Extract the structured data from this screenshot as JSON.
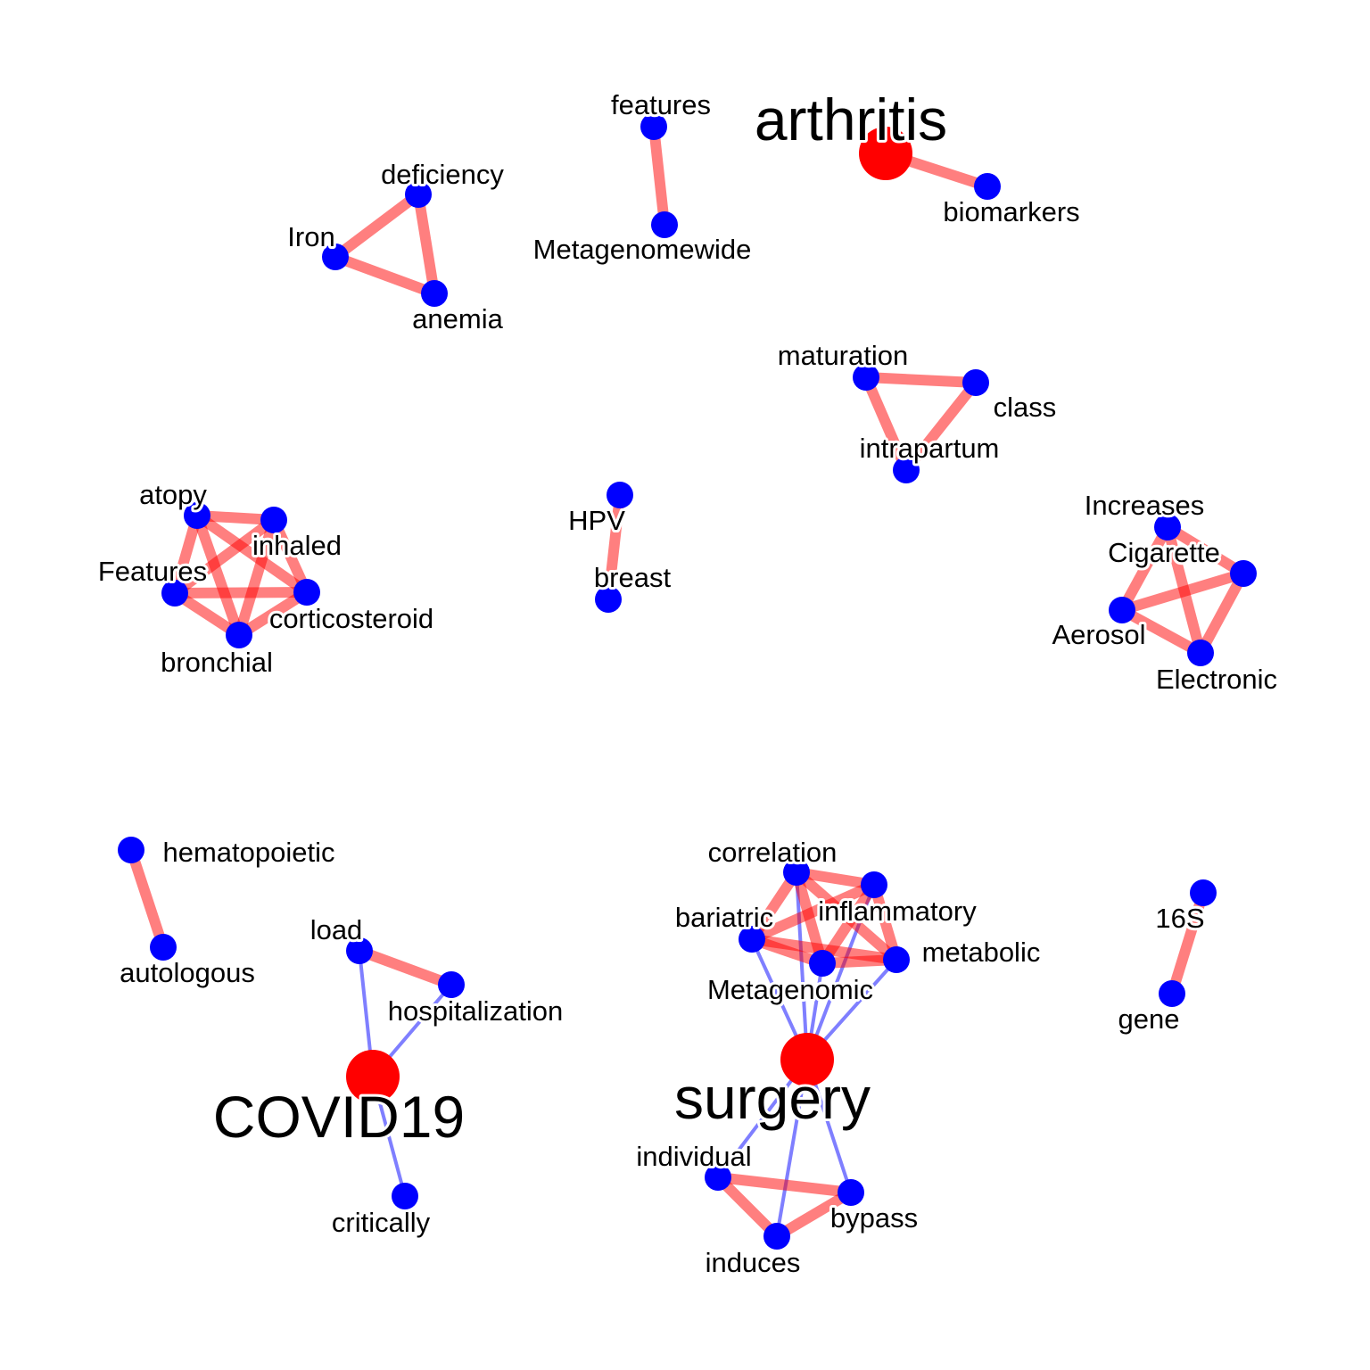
{
  "colors": {
    "background": "#ffffff",
    "term_node": "#0000ff",
    "hub_node": "#ff0000",
    "cooccurrence_edge": "#ff0000",
    "hub_edge": "#0000ff"
  },
  "network": {
    "hubs": [
      {
        "id": "arthritis",
        "label": "arthritis"
      },
      {
        "id": "COVID19",
        "label": "COVID19"
      },
      {
        "id": "surgery",
        "label": "surgery"
      }
    ],
    "terms": [
      {
        "id": "features",
        "label": "features"
      },
      {
        "id": "Metagenomewide",
        "label": "Metagenomewide"
      },
      {
        "id": "biomarkers",
        "label": "biomarkers"
      },
      {
        "id": "deficiency",
        "label": "deficiency"
      },
      {
        "id": "Iron",
        "label": "Iron"
      },
      {
        "id": "anemia",
        "label": "anemia"
      },
      {
        "id": "maturation",
        "label": "maturation"
      },
      {
        "id": "class",
        "label": "class"
      },
      {
        "id": "intrapartum",
        "label": "intrapartum"
      },
      {
        "id": "atopy",
        "label": "atopy"
      },
      {
        "id": "inhaled",
        "label": "inhaled"
      },
      {
        "id": "Features",
        "label": "Features"
      },
      {
        "id": "corticosteroid",
        "label": "corticosteroid"
      },
      {
        "id": "bronchial",
        "label": "bronchial"
      },
      {
        "id": "HPV",
        "label": "HPV"
      },
      {
        "id": "breast",
        "label": "breast"
      },
      {
        "id": "Increases",
        "label": "Increases"
      },
      {
        "id": "Cigarette",
        "label": "Cigarette"
      },
      {
        "id": "Aerosol",
        "label": "Aerosol"
      },
      {
        "id": "Electronic",
        "label": "Electronic"
      },
      {
        "id": "hematopoietic",
        "label": "hematopoietic"
      },
      {
        "id": "autologous",
        "label": "autologous"
      },
      {
        "id": "load",
        "label": "load"
      },
      {
        "id": "hospitalization",
        "label": "hospitalization"
      },
      {
        "id": "critically",
        "label": "critically"
      },
      {
        "id": "correlation",
        "label": "correlation"
      },
      {
        "id": "inflammatory",
        "label": "inflammatory"
      },
      {
        "id": "bariatric",
        "label": "bariatric"
      },
      {
        "id": "metabolic",
        "label": "metabolic"
      },
      {
        "id": "Metagenomic",
        "label": "Metagenomic"
      },
      {
        "id": "16S",
        "label": "16S"
      },
      {
        "id": "gene",
        "label": "gene"
      },
      {
        "id": "individual",
        "label": "individual"
      },
      {
        "id": "bypass",
        "label": "bypass"
      },
      {
        "id": "induces",
        "label": "induces"
      }
    ],
    "cooccurrence_edges": [
      [
        "features",
        "Metagenomewide"
      ],
      [
        "arthritis",
        "biomarkers"
      ],
      [
        "Iron",
        "deficiency"
      ],
      [
        "Iron",
        "anemia"
      ],
      [
        "deficiency",
        "anemia"
      ],
      [
        "maturation",
        "class"
      ],
      [
        "maturation",
        "intrapartum"
      ],
      [
        "class",
        "intrapartum"
      ],
      [
        "atopy",
        "inhaled"
      ],
      [
        "atopy",
        "Features"
      ],
      [
        "atopy",
        "corticosteroid"
      ],
      [
        "atopy",
        "bronchial"
      ],
      [
        "inhaled",
        "Features"
      ],
      [
        "inhaled",
        "corticosteroid"
      ],
      [
        "inhaled",
        "bronchial"
      ],
      [
        "Features",
        "corticosteroid"
      ],
      [
        "Features",
        "bronchial"
      ],
      [
        "corticosteroid",
        "bronchial"
      ],
      [
        "HPV",
        "breast"
      ],
      [
        "Increases",
        "Cigarette"
      ],
      [
        "Increases",
        "Aerosol"
      ],
      [
        "Increases",
        "Electronic"
      ],
      [
        "Cigarette",
        "Aerosol"
      ],
      [
        "Cigarette",
        "Electronic"
      ],
      [
        "Aerosol",
        "Electronic"
      ],
      [
        "hematopoietic",
        "autologous"
      ],
      [
        "load",
        "hospitalization"
      ],
      [
        "correlation",
        "inflammatory"
      ],
      [
        "correlation",
        "bariatric"
      ],
      [
        "correlation",
        "metabolic"
      ],
      [
        "correlation",
        "Metagenomic"
      ],
      [
        "inflammatory",
        "bariatric"
      ],
      [
        "inflammatory",
        "metabolic"
      ],
      [
        "inflammatory",
        "Metagenomic"
      ],
      [
        "bariatric",
        "metabolic"
      ],
      [
        "bariatric",
        "Metagenomic"
      ],
      [
        "metabolic",
        "Metagenomic"
      ],
      [
        "16S",
        "gene"
      ],
      [
        "individual",
        "bypass"
      ],
      [
        "individual",
        "induces"
      ],
      [
        "bypass",
        "induces"
      ]
    ],
    "hub_edges": [
      [
        "COVID19",
        "load"
      ],
      [
        "COVID19",
        "hospitalization"
      ],
      [
        "COVID19",
        "critically"
      ],
      [
        "surgery",
        "correlation"
      ],
      [
        "surgery",
        "inflammatory"
      ],
      [
        "surgery",
        "bariatric"
      ],
      [
        "surgery",
        "metabolic"
      ],
      [
        "surgery",
        "Metagenomic"
      ],
      [
        "surgery",
        "individual"
      ],
      [
        "surgery",
        "bypass"
      ],
      [
        "surgery",
        "induces"
      ]
    ]
  }
}
